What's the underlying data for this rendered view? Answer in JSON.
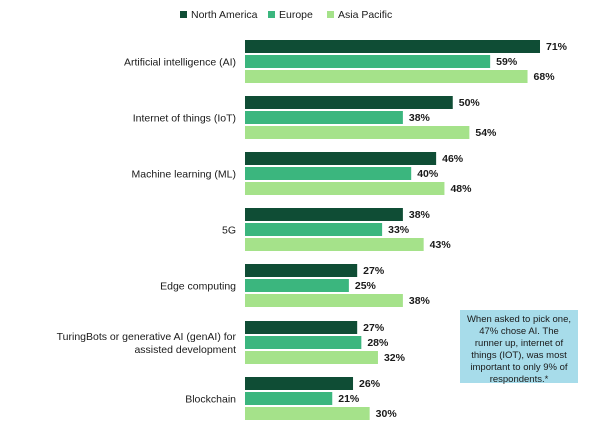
{
  "chart_data": {
    "type": "bar",
    "orientation": "horizontal",
    "categories": [
      "Artificial intelligence (AI)",
      "Internet of things (IoT)",
      "Machine learning (ML)",
      "5G",
      "Edge computing",
      "TuringBots or generative AI (genAI) for assisted development",
      "Blockchain"
    ],
    "series": [
      {
        "name": "North America",
        "color": "#0f4d35",
        "values": [
          71,
          50,
          46,
          38,
          27,
          27,
          26
        ]
      },
      {
        "name": "Europe",
        "color": "#3bb67e",
        "values": [
          59,
          38,
          40,
          33,
          25,
          28,
          21
        ]
      },
      {
        "name": "Asia Pacific",
        "color": "#a5e28a",
        "values": [
          68,
          54,
          48,
          43,
          38,
          32,
          30
        ]
      }
    ],
    "value_suffix": "%",
    "xlim": [
      0,
      100
    ],
    "legend_position": "top-left",
    "grid": false,
    "annotation": "When asked to pick one, 47% chose AI. The runner up, internet of things (IOT), was most important to only 9% of respondents.*"
  }
}
